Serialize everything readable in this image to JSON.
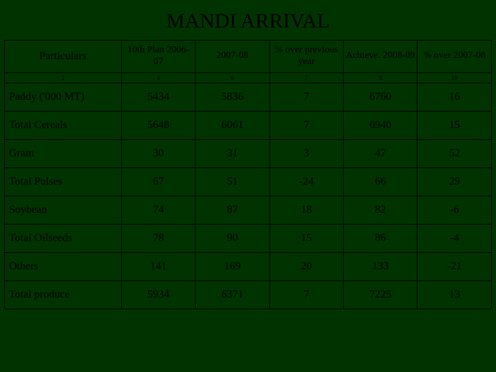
{
  "title": "MANDI ARRIVAL",
  "colors": {
    "background": "#003300",
    "border": "#000000",
    "text": "#000000"
  },
  "font": {
    "family": "Times New Roman",
    "title_size_pt": 30,
    "header_size_pt": 14,
    "subheader_size_pt": 9,
    "body_size_pt": 16
  },
  "table": {
    "columns": [
      {
        "label": "Particulars",
        "width_pct": 24,
        "align": "left"
      },
      {
        "label": "10th Plan 2006-07",
        "width_pct": 15.2,
        "align": "center"
      },
      {
        "label": "2007-08",
        "width_pct": 15.2,
        "align": "center"
      },
      {
        "label": "% over previous year",
        "width_pct": 15.2,
        "align": "center"
      },
      {
        "label": "Achieve. 2008-09",
        "width_pct": 15.2,
        "align": "center"
      },
      {
        "label": "% over 2007-08",
        "width_pct": 15.2,
        "align": "center"
      }
    ],
    "subheader": [
      "2",
      "4",
      "6",
      "7",
      "9",
      "10"
    ],
    "rows": [
      [
        "Paddy ('000 MT)",
        "5434",
        "5836",
        "7",
        "6760",
        "16"
      ],
      [
        "Total Cereals",
        "5648",
        "6061",
        "7",
        "6940",
        "15"
      ],
      [
        "Gram",
        "30",
        "31",
        "3",
        "47",
        "52"
      ],
      [
        "Total Pulses",
        "67",
        "51",
        "-24",
        "66",
        "29"
      ],
      [
        "Soybean",
        "74",
        "87",
        "18",
        "82",
        "-6"
      ],
      [
        "Total Oilseeds",
        "78",
        "90",
        "15",
        "86",
        "-4"
      ],
      [
        "Others",
        "141",
        "169",
        "20",
        "133",
        "-21"
      ],
      [
        "Total produce",
        "5934",
        "6371",
        "7",
        "7225",
        "13"
      ]
    ]
  }
}
